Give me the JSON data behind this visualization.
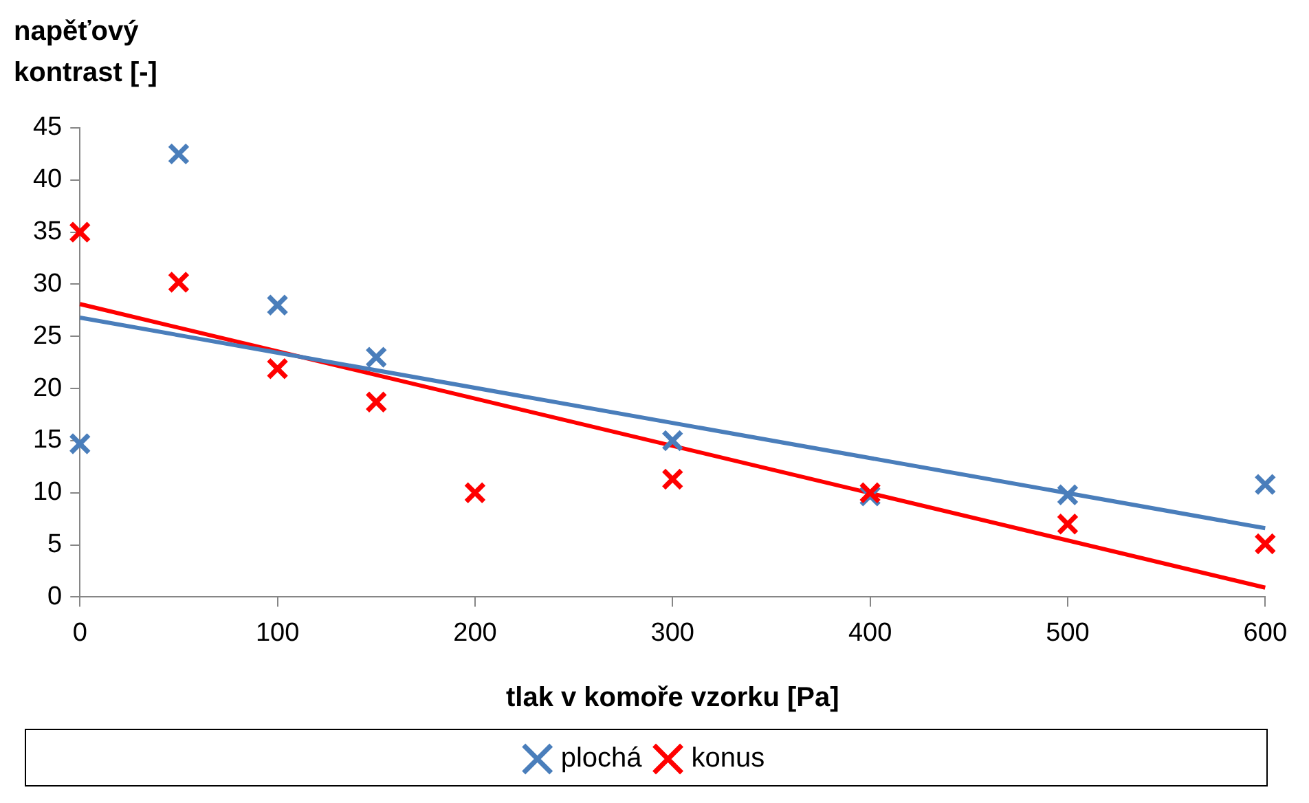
{
  "chart_data": {
    "type": "scatter",
    "xlabel": "tlak v komoře vzorku [Pa]",
    "ylabel": "napěťový kontrast [-]",
    "xlim": [
      0,
      600
    ],
    "xticks": [
      0,
      100,
      200,
      300,
      400,
      500,
      600
    ],
    "ylim": [
      0,
      45
    ],
    "yticks": [
      0,
      5,
      10,
      15,
      20,
      25,
      30,
      35,
      40,
      45
    ],
    "grid": false,
    "legend": "bottom",
    "marker": "cross",
    "series": [
      {
        "name": "plochá",
        "color": "#4a7ebb",
        "x": [
          0,
          50,
          100,
          150,
          300,
          400,
          500,
          600
        ],
        "values": [
          14.7,
          42.5,
          28,
          23,
          15,
          9.7,
          9.8,
          10.8
        ]
      },
      {
        "name": "konus",
        "color": "#ff0000",
        "x": [
          0,
          50,
          100,
          150,
          200,
          300,
          400,
          500,
          600
        ],
        "values": [
          35,
          30.2,
          21.9,
          18.7,
          10,
          11.3,
          10,
          7,
          5.1
        ]
      },
      {
        "type": "line",
        "color": "#4a7ebb",
        "line_style": "solid",
        "marker": "none",
        "x": [
          0,
          600
        ],
        "values": [
          26.8,
          6.6
        ]
      },
      {
        "type": "line",
        "color": "#ff0000",
        "line_style": "solid",
        "marker": "none",
        "x": [
          0,
          600
        ],
        "values": [
          28.1,
          0.9
        ]
      }
    ]
  }
}
